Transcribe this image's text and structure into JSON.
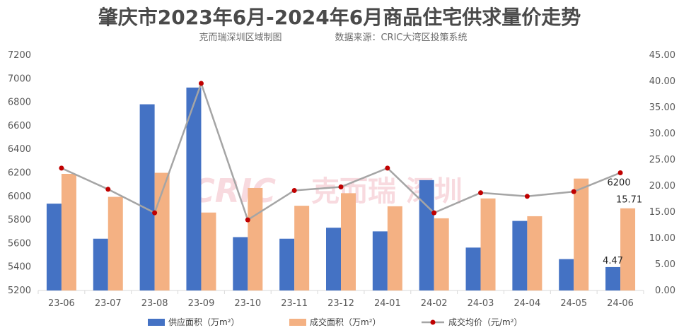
{
  "chart_data": {
    "type": "bar",
    "title": "肇庆市2023年6月-2024年6月商品住宅供求量价走势",
    "subtitle_left": "克而瑞深圳区域制图",
    "subtitle_right": "数据来源：CRIC大湾区投策系统",
    "watermark": {
      "logo": "CRIC",
      "name": "克而瑞 深圳"
    },
    "categories": [
      "23-06",
      "23-07",
      "23-08",
      "23-09",
      "23-10",
      "23-11",
      "23-12",
      "24-01",
      "24-02",
      "24-03",
      "24-04",
      "24-05",
      "24-06"
    ],
    "left_axis": {
      "min": 5200,
      "max": 7200,
      "step": 200,
      "ticks": [
        "5200",
        "5400",
        "5600",
        "5800",
        "6000",
        "6200",
        "6400",
        "6600",
        "6800",
        "7000",
        "7200"
      ]
    },
    "right_axis": {
      "min": 0,
      "max": 45,
      "step": 5,
      "ticks": [
        "0.00",
        "5.00",
        "10.00",
        "15.00",
        "20.00",
        "25.00",
        "30.00",
        "35.00",
        "40.00",
        "45.00"
      ]
    },
    "series": [
      {
        "name": "供应面积（万m²）",
        "type": "bar",
        "axis": "right",
        "color": "#4472c4",
        "values": [
          16.6,
          9.9,
          35.6,
          38.8,
          10.2,
          9.9,
          12.0,
          11.3,
          21.1,
          8.2,
          13.3,
          6.0,
          4.47
        ]
      },
      {
        "name": "成交面积（万m²）",
        "type": "bar",
        "axis": "right",
        "color": "#f4b183",
        "values": [
          22.3,
          17.9,
          22.5,
          14.9,
          19.6,
          16.2,
          18.6,
          16.1,
          13.8,
          17.6,
          14.2,
          21.4,
          15.71
        ]
      },
      {
        "name": "成交均价（元/m²）",
        "type": "line",
        "axis": "left",
        "color": "#a5a5a5",
        "marker_color": "#c00000",
        "values": [
          6240,
          6060,
          5860,
          6960,
          5800,
          6050,
          6080,
          6240,
          5860,
          6030,
          6000,
          6040,
          6200
        ]
      }
    ],
    "data_labels": {
      "supply_last": "4.47",
      "deal_last": "15.71",
      "price_last": "6200"
    },
    "legend": {
      "position": "bottom"
    },
    "grid": false
  }
}
